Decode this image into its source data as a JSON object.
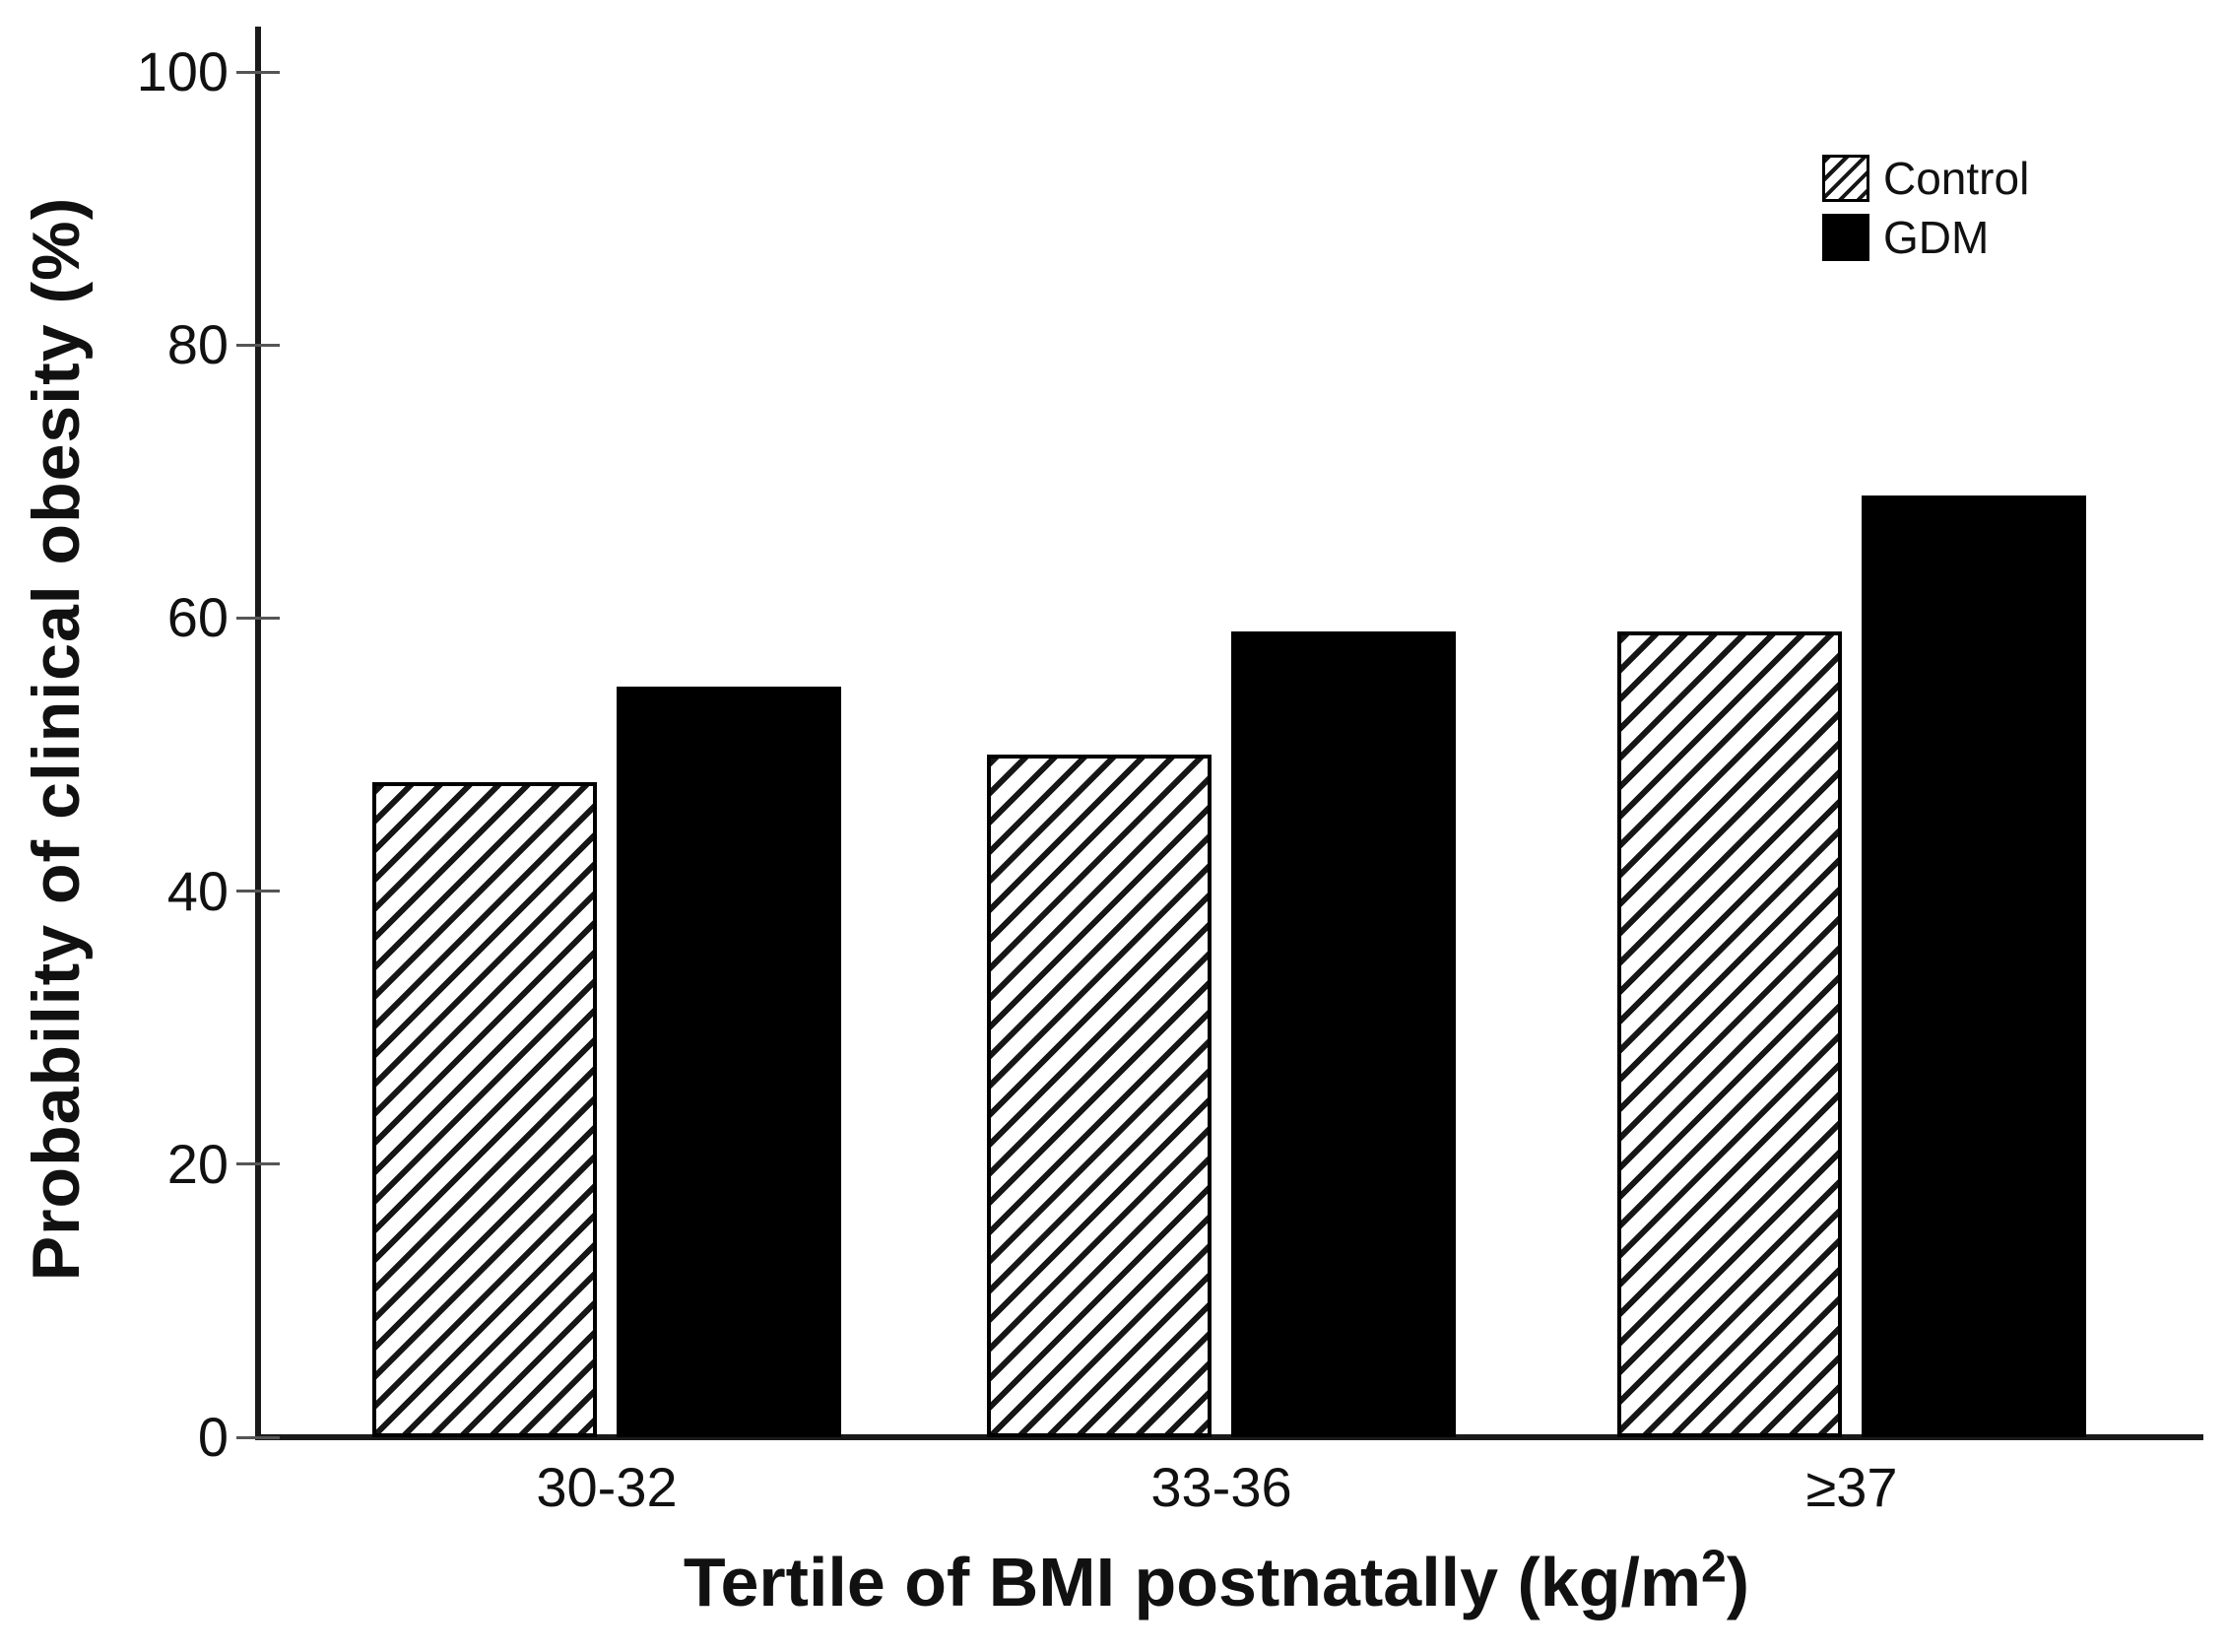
{
  "chart_data": {
    "type": "bar",
    "title": "",
    "categories": [
      "30-32",
      "33-36",
      "≥37"
    ],
    "series": [
      {
        "name": "Control",
        "fill": "hatched",
        "values": [
          48,
          50,
          59
        ]
      },
      {
        "name": "GDM",
        "fill": "solid",
        "values": [
          55,
          59,
          69
        ]
      }
    ],
    "xlabel": "Tertile of BMI postnatally (kg/m²)",
    "ylabel": "Probability of clinical obesity (%)",
    "ylim": [
      0,
      100
    ],
    "yticks": [
      0,
      20,
      40,
      60,
      80,
      100
    ],
    "grid": false,
    "legend_position": "top-right",
    "colors": {
      "bar_solid": "#000000",
      "bar_hatch_lines": "#1a1a1a",
      "axis": "#1a1a1a",
      "background": "#ffffff",
      "text": "#111111"
    }
  },
  "x_axis_title": {
    "prefix": "Tertile of BMI postnatally (kg/m",
    "sup": "2",
    "suffix": ")"
  }
}
